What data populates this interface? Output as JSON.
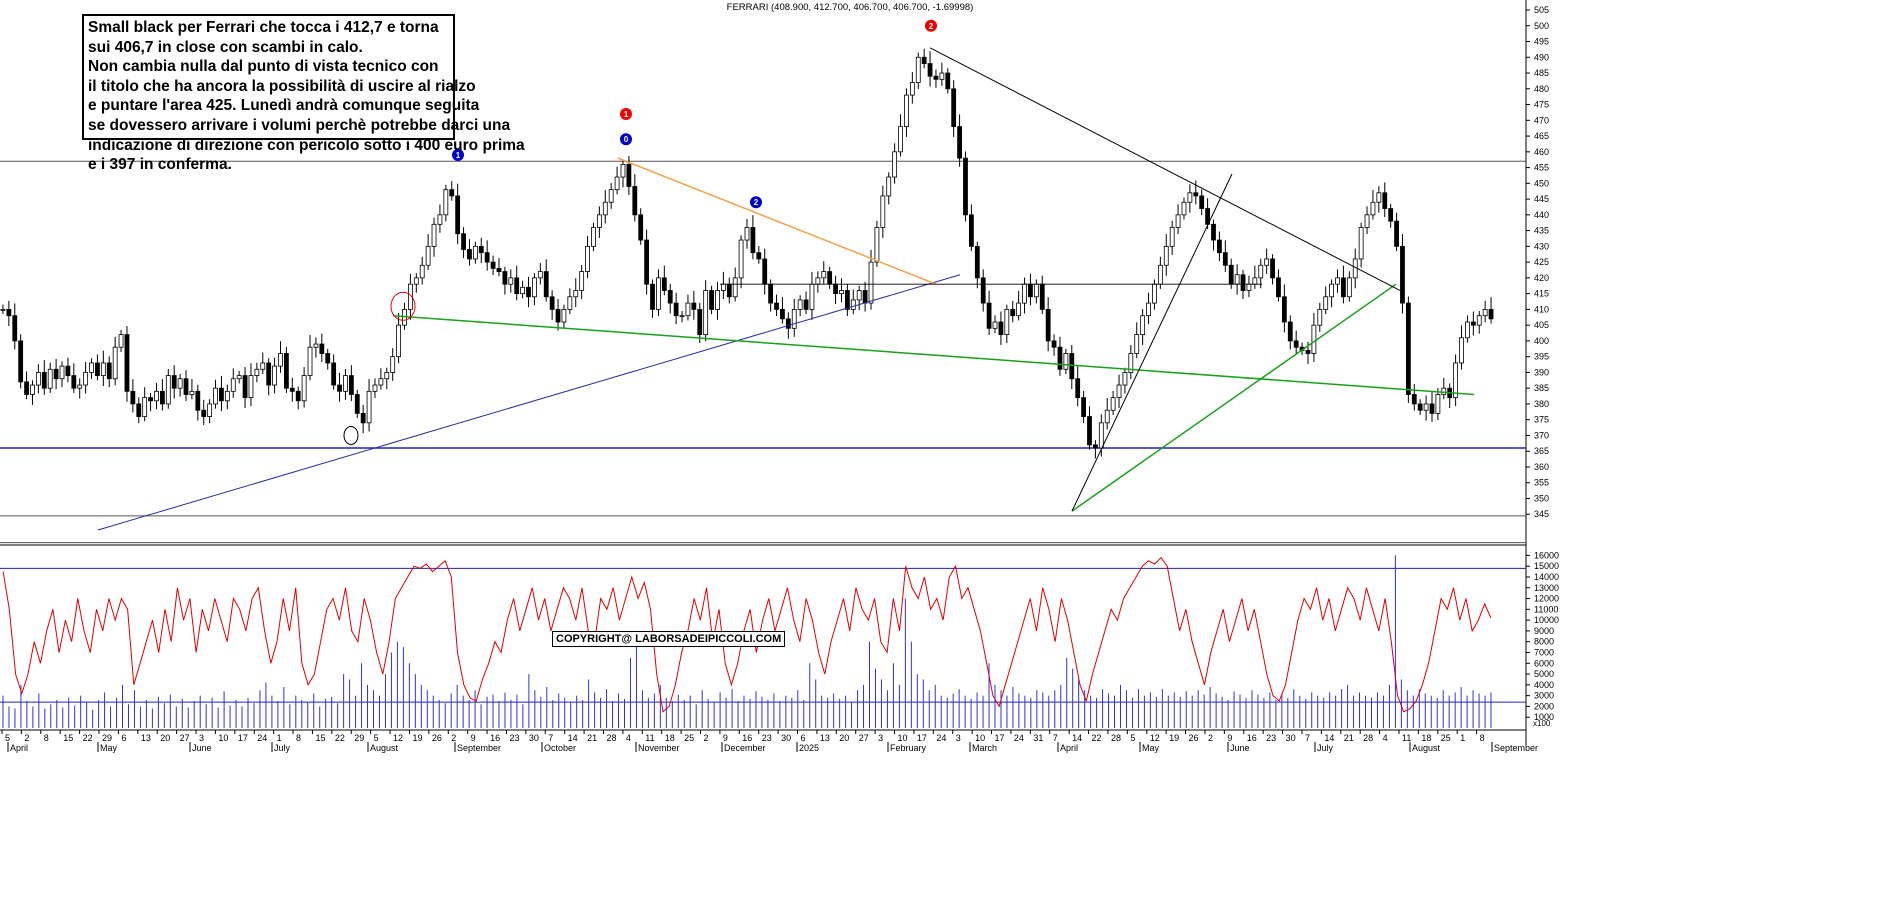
{
  "chart_data": [
    {
      "type": "candlestick",
      "title": "FERRARI (408.900, 412.700, 406.700, 406.700, -1.69998)",
      "ylim": [
        340,
        505
      ],
      "y_ticks": [
        345,
        350,
        355,
        360,
        365,
        370,
        375,
        380,
        385,
        390,
        395,
        400,
        405,
        410,
        415,
        420,
        425,
        430,
        435,
        440,
        445,
        450,
        455,
        460,
        465,
        470,
        475,
        480,
        485,
        490,
        495,
        500,
        505
      ],
      "grid": false,
      "horizontal_lines": [
        457,
        366,
        344.5,
        336
      ],
      "date_labels": [
        "5",
        "2",
        "8",
        "15",
        "22",
        "29",
        "6",
        "13",
        "20",
        "27",
        "3",
        "10",
        "17",
        "24",
        "1",
        "8",
        "15",
        "22",
        "29",
        "5",
        "12",
        "19",
        "26",
        "2",
        "9",
        "16",
        "23",
        "30",
        "7",
        "14",
        "21",
        "28",
        "4",
        "11",
        "18",
        "25",
        "2",
        "9",
        "16",
        "23",
        "30",
        "6",
        "13",
        "20",
        "27",
        "3",
        "10",
        "17",
        "24",
        "3",
        "10",
        "17",
        "24",
        "31",
        "7",
        "14",
        "22",
        "28",
        "5",
        "12",
        "19",
        "26",
        "2",
        "9",
        "16",
        "23",
        "30",
        "7",
        "14",
        "21",
        "28",
        "4",
        "11",
        "18",
        "25",
        "1",
        "8"
      ],
      "month_labels": [
        "April",
        "May",
        "June",
        "July",
        "August",
        "September",
        "October",
        "November",
        "December",
        "2025",
        "February",
        "March",
        "April",
        "May",
        "June",
        "July",
        "August",
        "September"
      ],
      "annotations": [
        "1",
        "0",
        "2",
        "1",
        "2"
      ],
      "series": [
        {
          "values": [
            410,
            408,
            400,
            387,
            383,
            386,
            390,
            385,
            391,
            388,
            392,
            389,
            385,
            386,
            390,
            393,
            389,
            393,
            388,
            398,
            402,
            384,
            380,
            376,
            382,
            381,
            384,
            380,
            389,
            385,
            388,
            383,
            384,
            378,
            376,
            380,
            385,
            381,
            384,
            388,
            389,
            382,
            389,
            391,
            393,
            386,
            392,
            396,
            385,
            384,
            381,
            389,
            398,
            399,
            396,
            393,
            386,
            384,
            389,
            383,
            377,
            374,
            384,
            386,
            388,
            390,
            395,
            405,
            410,
            418,
            420,
            424,
            430,
            437,
            440,
            448,
            446,
            434,
            429,
            426,
            430,
            428,
            425,
            423,
            422,
            418,
            420,
            415,
            417,
            414,
            420,
            422,
            414,
            410,
            406,
            410,
            414,
            416,
            422,
            430,
            436,
            440,
            444,
            448,
            452,
            456,
            449,
            440,
            432,
            418,
            410,
            420,
            416,
            412,
            408,
            408,
            412,
            410,
            402,
            416,
            410,
            416,
            418,
            414,
            420,
            432,
            436,
            428,
            426,
            418,
            412,
            410,
            407,
            404,
            410,
            413,
            410,
            418,
            420,
            422,
            418,
            415,
            416,
            410,
            413,
            416,
            412,
            425,
            436,
            446,
            452,
            460,
            468,
            478,
            482,
            490,
            488,
            484,
            483,
            485,
            480,
            468,
            458,
            440,
            430,
            420,
            412,
            404,
            406,
            402,
            410,
            408,
            412,
            418,
            414,
            418,
            410,
            400,
            398,
            391,
            396,
            388,
            382,
            376,
            367,
            366,
            374,
            378,
            382,
            386,
            390,
            396,
            402,
            408,
            412,
            418,
            424,
            430,
            436,
            440,
            444,
            447,
            446,
            442,
            437,
            432,
            428,
            424,
            418,
            421,
            416,
            418,
            420,
            424,
            426,
            420,
            414,
            406,
            400,
            398,
            397,
            396,
            405,
            410,
            414,
            418,
            420,
            414,
            420,
            426,
            436,
            440,
            444,
            447,
            442,
            438,
            430,
            412,
            383,
            380,
            378,
            380,
            377,
            383,
            385,
            382,
            393,
            401,
            406,
            405,
            408,
            410,
            407
          ]
        },
        {
          "name": "Volume",
          "values": []
        }
      ]
    },
    {
      "type": "bar+line",
      "ylim": [
        0,
        16500
      ],
      "y_ticks": [
        1000,
        2000,
        3000,
        4000,
        5000,
        6000,
        7000,
        8000,
        9000,
        10000,
        11000,
        12000,
        13000,
        14000,
        15000,
        16000
      ],
      "horizontal_lines": [
        14800,
        2400
      ],
      "corner_label": "x100",
      "line": [
        14500,
        11000,
        5000,
        3200,
        5000,
        8000,
        6000,
        9000,
        11000,
        7000,
        10000,
        8000,
        12000,
        9000,
        7000,
        11000,
        9000,
        12000,
        10000,
        12000,
        11000,
        4000,
        6000,
        8000,
        10000,
        7000,
        11000,
        8000,
        13000,
        10000,
        12000,
        7000,
        11000,
        9000,
        12000,
        10000,
        8000,
        12000,
        11000,
        9000,
        12000,
        13000,
        9000,
        6000,
        8000,
        12000,
        9000,
        13000,
        6000,
        4000,
        5000,
        8000,
        11000,
        12000,
        10000,
        13000,
        9000,
        8000,
        12000,
        10000,
        7000,
        5000,
        8000,
        12000,
        13000,
        14000,
        15000,
        14800,
        15200,
        14500,
        15000,
        15500,
        14000,
        7000,
        4000,
        2800,
        2500,
        4500,
        6000,
        8000,
        7000,
        10000,
        12000,
        9000,
        11000,
        13000,
        10000,
        12000,
        9000,
        11000,
        13000,
        12000,
        10000,
        13000,
        9000,
        8000,
        12000,
        11000,
        13000,
        10000,
        12000,
        14000,
        12000,
        13500,
        11000,
        5000,
        1500,
        2000,
        4000,
        7000,
        9000,
        12000,
        10000,
        13000,
        8000,
        11000,
        6000,
        4000,
        6000,
        9000,
        11000,
        7000,
        10000,
        12000,
        9000,
        11000,
        13000,
        10000,
        8000,
        12000,
        10000,
        7000,
        5000,
        8000,
        10000,
        12000,
        9000,
        13000,
        11000,
        10000,
        12000,
        8000,
        7000,
        12000,
        9000,
        15000,
        13000,
        12000,
        14000,
        11000,
        12000,
        10000,
        14000,
        15000,
        12000,
        13000,
        11000,
        9000,
        6000,
        3000,
        2000,
        4000,
        6000,
        8000,
        10000,
        12000,
        9000,
        13000,
        11000,
        8000,
        12000,
        10000,
        7000,
        4000,
        2500,
        5000,
        7000,
        9000,
        11000,
        10000,
        12000,
        13000,
        14000,
        15000,
        15500,
        15200,
        15800,
        15000,
        12000,
        9000,
        11000,
        8000,
        6000,
        4000,
        7000,
        9000,
        11000,
        8000,
        10000,
        12000,
        9000,
        11000,
        8000,
        5000,
        3000,
        2500,
        4000,
        7000,
        10000,
        12000,
        11000,
        13000,
        10000,
        12000,
        9000,
        11000,
        13000,
        12000,
        10000,
        13000,
        11000,
        9000,
        12000,
        8000,
        3000,
        1500,
        1800,
        2500,
        4000,
        6000,
        9000,
        12000,
        11000,
        13000,
        10000,
        12000,
        9000,
        10000,
        11500,
        10200
      ],
      "volume": [
        3000,
        2000,
        1800,
        4000,
        2500,
        2000,
        3200,
        1800,
        2200,
        2600,
        1900,
        2800,
        2100,
        3000,
        2400,
        1700,
        2600,
        3300,
        2000,
        2800,
        4000,
        2200,
        3500,
        2000,
        2600,
        1800,
        2900,
        2300,
        3100,
        2000,
        2700,
        1900,
        2500,
        3000,
        2200,
        2800,
        1900,
        3400,
        2100,
        2600,
        2000,
        2800,
        2300,
        3500,
        4200,
        3000,
        2500,
        3800,
        2200,
        3000,
        2600,
        2400,
        3200,
        2000,
        2700,
        2900,
        2300,
        5000,
        4500,
        3000,
        6000,
        4000,
        3500,
        3000,
        5000,
        7000,
        8000,
        7500,
        6000,
        5000,
        4000,
        3500,
        3000,
        2600,
        2300,
        3200,
        4000,
        3000,
        2600,
        3500,
        2200,
        2900,
        3100,
        2500,
        3300,
        2600,
        3100,
        2200,
        5000,
        3500,
        2900,
        3800,
        2600,
        3200,
        2800,
        2400,
        3000,
        2600,
        4500,
        3300,
        2800,
        3600,
        2500,
        3200,
        2700,
        6500,
        8000,
        3500,
        2800,
        3200,
        4000,
        2800,
        2500,
        3100,
        2600,
        3000,
        2200,
        3500,
        2700,
        2400,
        3300,
        2800,
        3600,
        2500,
        3000,
        2700,
        3400,
        2900,
        2600,
        3200,
        2500,
        3000,
        2800,
        3500,
        2600,
        6000,
        4500,
        3000,
        2800,
        3200,
        2700,
        3000,
        2400,
        3500,
        4000,
        8000,
        5500,
        4500,
        3500,
        6000,
        4000,
        12000,
        8000,
        5000,
        4500,
        3500,
        4000,
        3000,
        2800,
        3200,
        3600,
        3000,
        2700,
        3300,
        3000,
        6000,
        4000,
        3500,
        3000,
        3800,
        3200,
        3000,
        2800,
        3500,
        3300,
        3000,
        3500,
        4000,
        6500,
        5500,
        4500,
        3500,
        3000,
        2800,
        3600,
        3200,
        3000,
        4000,
        3500,
        2800,
        3600,
        3000,
        3300,
        2900,
        3600,
        3000,
        3300,
        2900,
        3400,
        3000,
        3500,
        3100,
        3800,
        3200,
        2900,
        2600,
        3400,
        3100,
        2800,
        3500,
        3100,
        2800,
        3300,
        2600,
        3100,
        2800,
        3600,
        3000,
        2700,
        3300,
        3000,
        2800,
        3300,
        3000,
        3600,
        4000,
        3000,
        3300,
        3000,
        2800,
        3300,
        3000,
        4000,
        16000,
        4500,
        3500,
        3000,
        3600,
        3200,
        3000,
        2800,
        3500,
        3000,
        3300,
        3800,
        3000,
        3500,
        3200,
        3000,
        3300
      ]
    }
  ],
  "note_lines": [
    "Small black per Ferrari che tocca i 412,7 e torna",
    "sui 406,7 in close con scambi in calo.",
    "Non cambia nulla dal punto di vista tecnico con",
    "il titolo che ha ancora la possibilità di uscire al rialzo",
    "e puntare l'area 425. Lunedì andrà comunque seguita",
    "se dovessero arrivare i volumi perchè potrebbe darci una",
    "indicazione di direzione con pericolo sotto i 400 euro prima",
    "e i 397 in conferma."
  ],
  "copyright": "COPYRIGHT@ LABORSADEIPICCOLI.COM",
  "colors": {
    "candle": "#000000",
    "trend_orange": "#f5a04a",
    "trend_green": "#19a019",
    "trend_blue": "#2a2aa0",
    "hline_blue": "#2020c0",
    "volume": "#3030e0",
    "oscillator": "#e00000"
  }
}
